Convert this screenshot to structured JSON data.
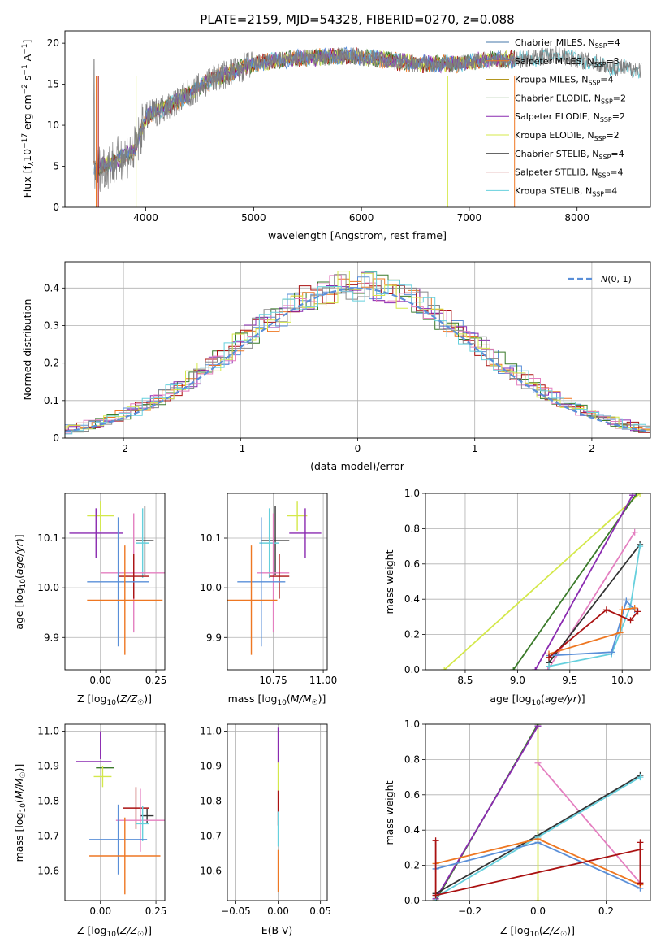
{
  "chart_data": [
    {
      "id": "spectrum",
      "type": "line",
      "title": "PLATE=2159, MJD=54328, FIBERID=0270, z=0.088",
      "xlabel": "wavelength [Angstrom, rest frame]",
      "ylabel": "Flux [f_λ 10^-17 erg cm^-2 s^-1 A^-1]",
      "xlim": [
        3250,
        8680
      ],
      "ylim": [
        0,
        21.5
      ],
      "xticks": [
        4000,
        5000,
        6000,
        7000,
        8000
      ],
      "yticks": [
        0,
        5,
        10,
        15,
        20
      ],
      "legend_position": "upper-right",
      "data_shape": [
        [
          3500,
          4.5
        ],
        [
          3700,
          5.5
        ],
        [
          3900,
          7
        ],
        [
          4000,
          11
        ],
        [
          4300,
          13
        ],
        [
          4600,
          15.5
        ],
        [
          5000,
          17.5
        ],
        [
          5300,
          18
        ],
        [
          5600,
          18.3
        ],
        [
          5900,
          18.5
        ],
        [
          6200,
          18
        ],
        [
          6500,
          17.5
        ],
        [
          6900,
          17.5
        ],
        [
          7200,
          18
        ],
        [
          7500,
          18
        ],
        [
          7800,
          18.6
        ],
        [
          8100,
          17.8
        ],
        [
          8300,
          17.2
        ],
        [
          8600,
          16.7
        ]
      ],
      "legend": [
        {
          "label": "Chabrier MILES, N_SSP=4",
          "color": "#4477aa"
        },
        {
          "label": "Salpeter MILES, N_SSP=3",
          "color": "#ee7722"
        },
        {
          "label": "Kroupa MILES, N_SSP=4",
          "color": "#aa8800"
        },
        {
          "label": "Chabrier ELODIE, N_SSP=2",
          "color": "#3a7a2a"
        },
        {
          "label": "Salpeter ELODIE, N_SSP=2",
          "color": "#8a2ab0"
        },
        {
          "label": "Kroupa ELODIE, N_SSP=2",
          "color": "#d4e84a"
        },
        {
          "label": "Chabrier STELIB, N_SSP=4",
          "color": "#333333"
        },
        {
          "label": "Salpeter STELIB, N_SSP=4",
          "color": "#aa1111"
        },
        {
          "label": "Kroupa STELIB, N_SSP=4",
          "color": "#66d0dd"
        }
      ]
    },
    {
      "id": "residuals",
      "type": "histogram",
      "xlabel": "(data-model)/error",
      "ylabel": "Normed distribution",
      "xlim": [
        -2.5,
        2.5
      ],
      "ylim": [
        0,
        0.47
      ],
      "xticks": [
        -2,
        -1,
        0,
        1,
        2
      ],
      "yticks": [
        0.0,
        0.1,
        0.2,
        0.3,
        0.4
      ],
      "grid": true,
      "legend": [
        {
          "label": "N(0,1)",
          "color": "#5a8fd8",
          "style": "dashed"
        }
      ],
      "series_colors": [
        "#5a8fd8",
        "#ee7722",
        "#3a7a2a",
        "#aa1111",
        "#8a2ab0",
        "#e47fc0",
        "#888888",
        "#d4e84a",
        "#66d0dd"
      ]
    },
    {
      "id": "age_vs_Z",
      "type": "errorbar",
      "xlabel": "Z [log10(Z/Z☉)]",
      "ylabel": "age  [log10(age/yr)]",
      "xlim": [
        -0.16,
        0.29
      ],
      "ylim": [
        9.835,
        10.19
      ],
      "xticks": [
        "0.00",
        "0.25"
      ],
      "yticks": [
        "9.9",
        "10.0",
        "10.1"
      ],
      "grid": true,
      "points": [
        {
          "x": 0.0,
          "y": 10.145,
          "xerr": 0.06,
          "yerr": 0.03,
          "color": "#d4e84a"
        },
        {
          "x": -0.02,
          "y": 10.11,
          "xerr": 0.12,
          "yerr": 0.05,
          "color": "#8a2ab0"
        },
        {
          "x": 0.2,
          "y": 10.095,
          "xerr": 0.04,
          "yerr": 0.07,
          "color": "#333333"
        },
        {
          "x": 0.19,
          "y": 10.09,
          "xerr": 0.03,
          "yerr": 0.07,
          "color": "#66d0dd"
        },
        {
          "x": 0.15,
          "y": 10.03,
          "xerr": 0.15,
          "yerr": 0.12,
          "color": "#e47fc0"
        },
        {
          "x": 0.15,
          "y": 10.023,
          "xerr": 0.07,
          "yerr": 0.045,
          "color": "#aa1111"
        },
        {
          "x": 0.08,
          "y": 10.012,
          "xerr": 0.14,
          "yerr": 0.13,
          "color": "#5a8fd8"
        },
        {
          "x": 0.11,
          "y": 9.975,
          "xerr": 0.17,
          "yerr": 0.11,
          "color": "#ee7722"
        }
      ]
    },
    {
      "id": "age_vs_mass",
      "type": "errorbar",
      "xlabel": "mass [log10(M/M☉)]",
      "ylabel": "",
      "xlim": [
        10.52,
        11.02
      ],
      "ylim": [
        9.835,
        10.19
      ],
      "xticks": [
        "10.75",
        "11.00"
      ],
      "yticks": [
        "9.9",
        "10.0",
        "10.1"
      ],
      "grid": true,
      "points": [
        {
          "x": 10.87,
          "y": 10.145,
          "xerr": 0.05,
          "yerr": 0.03,
          "color": "#d4e84a"
        },
        {
          "x": 10.91,
          "y": 10.11,
          "xerr": 0.08,
          "yerr": 0.05,
          "color": "#8a2ab0"
        },
        {
          "x": 10.76,
          "y": 10.095,
          "xerr": 0.07,
          "yerr": 0.07,
          "color": "#333333"
        },
        {
          "x": 10.73,
          "y": 10.09,
          "xerr": 0.05,
          "yerr": 0.07,
          "color": "#66d0dd"
        },
        {
          "x": 10.75,
          "y": 10.03,
          "xerr": 0.08,
          "yerr": 0.12,
          "color": "#e47fc0"
        },
        {
          "x": 10.78,
          "y": 10.023,
          "xerr": 0.05,
          "yerr": 0.045,
          "color": "#aa1111"
        },
        {
          "x": 10.69,
          "y": 10.012,
          "xerr": 0.12,
          "yerr": 0.13,
          "color": "#5a8fd8"
        },
        {
          "x": 10.64,
          "y": 9.975,
          "xerr": 0.13,
          "yerr": 0.11,
          "color": "#ee7722"
        }
      ]
    },
    {
      "id": "massweight_vs_age",
      "type": "line",
      "xlabel": "age  [log10(age/yr)]",
      "ylabel": "mass weight",
      "xlim": [
        8.12,
        10.27
      ],
      "ylim": [
        0,
        1
      ],
      "xticks": [
        "8.5",
        "9.0",
        "9.5",
        "10.0"
      ],
      "yticks": [
        "0.0",
        "0.2",
        "0.4",
        "0.6",
        "0.8",
        "1.0"
      ],
      "grid": true,
      "series": [
        {
          "color": "#d4e84a",
          "x": [
            8.3,
            10.17
          ],
          "y": [
            0.0,
            1.0
          ]
        },
        {
          "color": "#3a7a2a",
          "x": [
            8.96,
            10.14
          ],
          "y": [
            0.0,
            1.0
          ]
        },
        {
          "color": "#8a2ab0",
          "x": [
            9.17,
            10.1
          ],
          "y": [
            0.0,
            0.99
          ]
        },
        {
          "color": "#e47fc0",
          "x": [
            9.29,
            10.12
          ],
          "y": [
            0.0,
            0.78
          ]
        },
        {
          "color": "#333333",
          "x": [
            9.3,
            10.17
          ],
          "y": [
            0.04,
            0.71
          ]
        },
        {
          "color": "#66d0dd",
          "x": [
            9.3,
            9.9,
            10.08,
            10.17
          ],
          "y": [
            0.02,
            0.09,
            0.36,
            0.7
          ]
        },
        {
          "color": "#5a8fd8",
          "x": [
            9.3,
            9.9,
            10.04,
            10.12
          ],
          "y": [
            0.08,
            0.1,
            0.39,
            0.34
          ]
        },
        {
          "color": "#ee7722",
          "x": [
            9.3,
            9.98,
            10.0,
            10.12
          ],
          "y": [
            0.09,
            0.21,
            0.34,
            0.35
          ]
        },
        {
          "color": "#aa1111",
          "x": [
            9.3,
            9.85,
            10.08,
            10.15
          ],
          "y": [
            0.07,
            0.34,
            0.28,
            0.33
          ]
        }
      ]
    },
    {
      "id": "mass_vs_Z",
      "type": "errorbar",
      "xlabel": "Z [log10(Z/Z☉)]",
      "ylabel": "mass [log10(M/M☉)]",
      "xlim": [
        -0.16,
        0.29
      ],
      "ylim": [
        10.515,
        11.02
      ],
      "xticks": [
        "0.00",
        "0.25"
      ],
      "yticks": [
        "10.6",
        "10.7",
        "10.8",
        "10.9",
        "11.0"
      ],
      "grid": true,
      "points": [
        {
          "x": 0.0,
          "y": 10.96,
          "xerr": 0.0,
          "yerr": 0.04,
          "color": "#8a2ab0"
        },
        {
          "x": -0.03,
          "y": 10.913,
          "xerr": 0.08,
          "yerr": 0.0,
          "color": "#8a2ab0"
        },
        {
          "x": 0.02,
          "y": 10.895,
          "xerr": 0.04,
          "yerr": 0.0,
          "color": "#3a7a2a"
        },
        {
          "x": 0.01,
          "y": 10.87,
          "xerr": 0.04,
          "yerr": 0.03,
          "color": "#d4e84a"
        },
        {
          "x": 0.16,
          "y": 10.78,
          "xerr": 0.06,
          "yerr": 0.06,
          "color": "#aa1111"
        },
        {
          "x": 0.21,
          "y": 10.758,
          "xerr": 0.03,
          "yerr": 0.02,
          "color": "#333333"
        },
        {
          "x": 0.18,
          "y": 10.745,
          "xerr": 0.11,
          "yerr": 0.09,
          "color": "#e47fc0"
        },
        {
          "x": 0.19,
          "y": 10.735,
          "xerr": 0.03,
          "yerr": 0.05,
          "color": "#66d0dd"
        },
        {
          "x": 0.08,
          "y": 10.69,
          "xerr": 0.13,
          "yerr": 0.1,
          "color": "#5a8fd8"
        },
        {
          "x": 0.11,
          "y": 10.643,
          "xerr": 0.16,
          "yerr": 0.11,
          "color": "#ee7722"
        }
      ]
    },
    {
      "id": "mass_vs_EBV",
      "type": "errorbar",
      "xlabel": "E(B-V)",
      "ylabel": "",
      "xlim": [
        -0.06,
        0.058
      ],
      "ylim": [
        10.515,
        11.02
      ],
      "xticks": [
        "−0.05",
        "0.00",
        "0.05"
      ],
      "yticks": [
        "10.6",
        "10.7",
        "10.8",
        "10.9",
        "11.0"
      ],
      "grid": true,
      "points": [
        {
          "x": 0.0,
          "y": 10.96,
          "xerr": 0.0,
          "yerr": 0.05,
          "color": "#8a2ab0"
        },
        {
          "x": 0.0,
          "y": 10.87,
          "xerr": 0.0,
          "yerr": 0.04,
          "color": "#d4e84a"
        },
        {
          "x": 0.0,
          "y": 10.78,
          "xerr": 0.0,
          "yerr": 0.05,
          "color": "#aa1111"
        },
        {
          "x": 0.0,
          "y": 10.72,
          "xerr": 0.0,
          "yerr": 0.05,
          "color": "#66d0dd"
        },
        {
          "x": 0.0,
          "y": 10.6,
          "xerr": 0.0,
          "yerr": 0.06,
          "color": "#ee7722"
        }
      ]
    },
    {
      "id": "massweight_vs_Z",
      "type": "line",
      "xlabel": "Z [log10(Z/Z☉)]",
      "ylabel": "mass weight",
      "xlim": [
        -0.33,
        0.33
      ],
      "ylim": [
        0,
        1
      ],
      "xticks": [
        "−0.2",
        "0.0",
        "0.2"
      ],
      "yticks": [
        "0.0",
        "0.2",
        "0.4",
        "0.6",
        "0.8",
        "1.0"
      ],
      "grid": true,
      "series": [
        {
          "color": "#d4e84a",
          "x": [
            0.0,
            0.0
          ],
          "y": [
            0.0,
            1.0
          ]
        },
        {
          "color": "#3a7a2a",
          "x": [
            -0.3,
            0.0
          ],
          "y": [
            0.0,
            1.0
          ]
        },
        {
          "color": "#8a2ab0",
          "x": [
            -0.3,
            0.0
          ],
          "y": [
            0.01,
            0.99
          ]
        },
        {
          "color": "#e47fc0",
          "x": [
            0.0,
            0.3
          ],
          "y": [
            0.78,
            0.1
          ]
        },
        {
          "color": "#333333",
          "x": [
            -0.3,
            0.0,
            0.3
          ],
          "y": [
            0.04,
            0.37,
            0.71
          ]
        },
        {
          "color": "#66d0dd",
          "x": [
            -0.3,
            0.0,
            0.3
          ],
          "y": [
            0.02,
            0.36,
            0.7
          ]
        },
        {
          "color": "#5a8fd8",
          "x": [
            -0.3,
            0.0,
            0.3
          ],
          "y": [
            0.18,
            0.33,
            0.07
          ]
        },
        {
          "color": "#ee7722",
          "x": [
            -0.3,
            0.0,
            0.3
          ],
          "y": [
            0.21,
            0.35,
            0.09
          ]
        },
        {
          "color": "#aa1111",
          "x": [
            -0.3,
            0.3
          ],
          "y": [
            0.03,
            0.29
          ]
        },
        {
          "color": "#aa1111",
          "x": [
            -0.3,
            -0.3
          ],
          "y": [
            0.03,
            0.34
          ]
        },
        {
          "color": "#aa1111",
          "x": [
            0.3,
            0.3
          ],
          "y": [
            0.1,
            0.33
          ]
        }
      ]
    }
  ]
}
